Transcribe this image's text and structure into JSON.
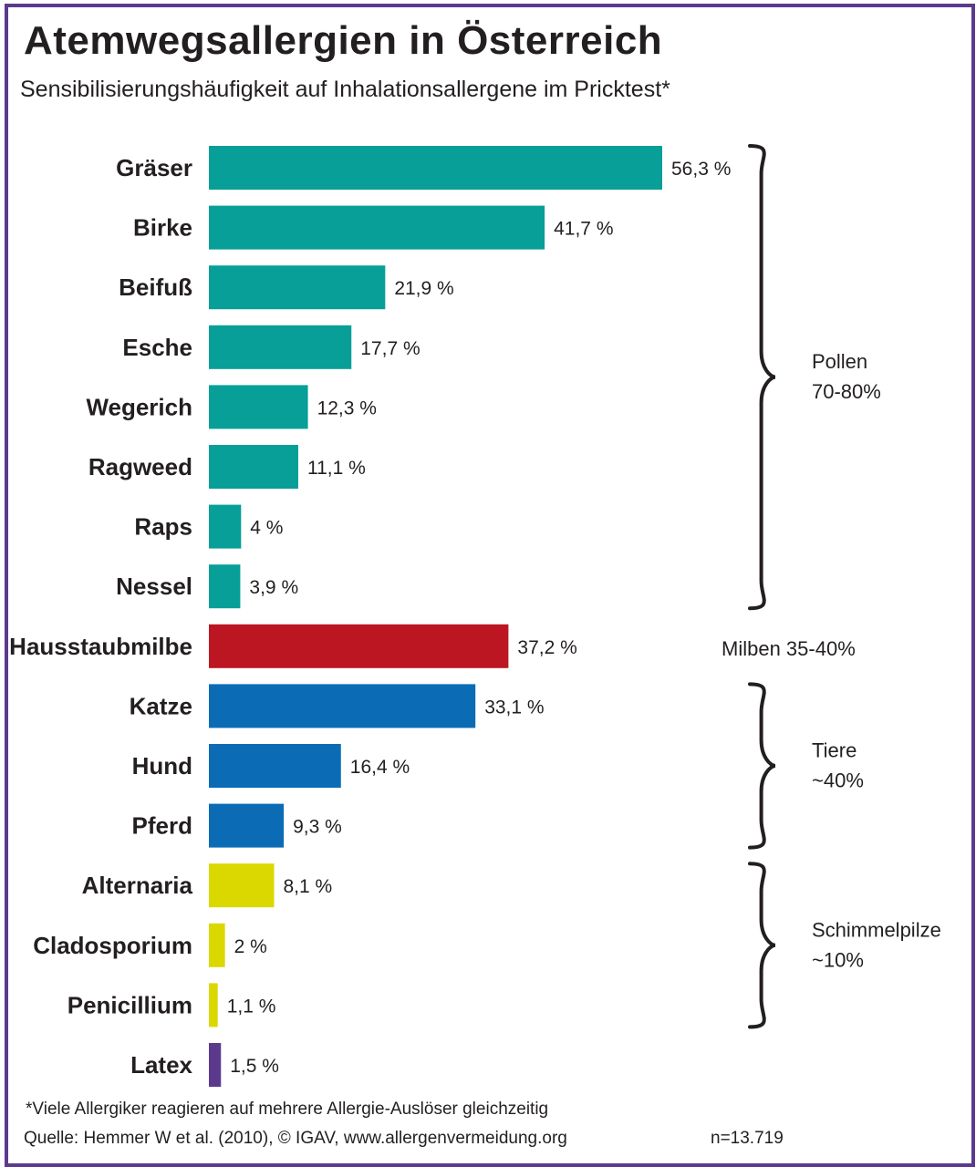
{
  "title": "Atemwegsallergien in Österreich",
  "subtitle": "Sensibilisierungshäufigkeit auf Inhalationsallergene im Pricktest*",
  "footnote": "*Viele Allergiker reagieren auf mehrere Allergie-Auslöser gleichzeitig",
  "source": "Quelle: Hemmer W et al. (2010), © IGAV, www.allergenvermeidung.org",
  "sample_size": "n=13.719",
  "colors": {
    "pollen": "#079f98",
    "milben": "#bb1622",
    "tiere": "#0b6cb5",
    "schimmel": "#dbd800",
    "latex": "#5b3a8e",
    "frame": "#5b3a8e"
  },
  "chart_data": {
    "type": "bar",
    "orientation": "horizontal",
    "unit": "%",
    "categories": [
      "Gräser",
      "Birke",
      "Beifuß",
      "Esche",
      "Wegerich",
      "Ragweed",
      "Raps",
      "Nessel",
      "Hausstaubmilbe",
      "Katze",
      "Hund",
      "Pferd",
      "Alternaria",
      "Cladosporium",
      "Penicillium",
      "Latex"
    ],
    "values": [
      56.3,
      41.7,
      21.9,
      17.7,
      12.3,
      11.1,
      4,
      3.9,
      37.2,
      33.1,
      16.4,
      9.3,
      8.1,
      2,
      1.1,
      1.5
    ],
    "value_labels": [
      "56,3 %",
      "41,7 %",
      "21,9 %",
      "17,7 %",
      "12,3 %",
      "11,1 %",
      "4 %",
      "3,9 %",
      "37,2 %",
      "33,1 %",
      "16,4 %",
      "9,3 %",
      "8,1 %",
      "2 %",
      "1,1 %",
      "1,5 %"
    ],
    "groups": [
      "pollen",
      "pollen",
      "pollen",
      "pollen",
      "pollen",
      "pollen",
      "pollen",
      "pollen",
      "milben",
      "tiere",
      "tiere",
      "tiere",
      "schimmel",
      "schimmel",
      "schimmel",
      "latex"
    ],
    "xlim": [
      0,
      56.3
    ],
    "grid": false,
    "group_annotations": [
      {
        "lines": [
          "Pollen",
          "70-80%"
        ],
        "first": 0,
        "last": 7,
        "brace": true
      },
      {
        "lines": [
          "Milben 35-40%"
        ],
        "first": 8,
        "last": 8,
        "brace": false
      },
      {
        "lines": [
          "Tiere",
          "~40%"
        ],
        "first": 9,
        "last": 11,
        "brace": true
      },
      {
        "lines": [
          "Schimmelpilze",
          "~10%"
        ],
        "first": 12,
        "last": 14,
        "brace": true
      }
    ]
  }
}
